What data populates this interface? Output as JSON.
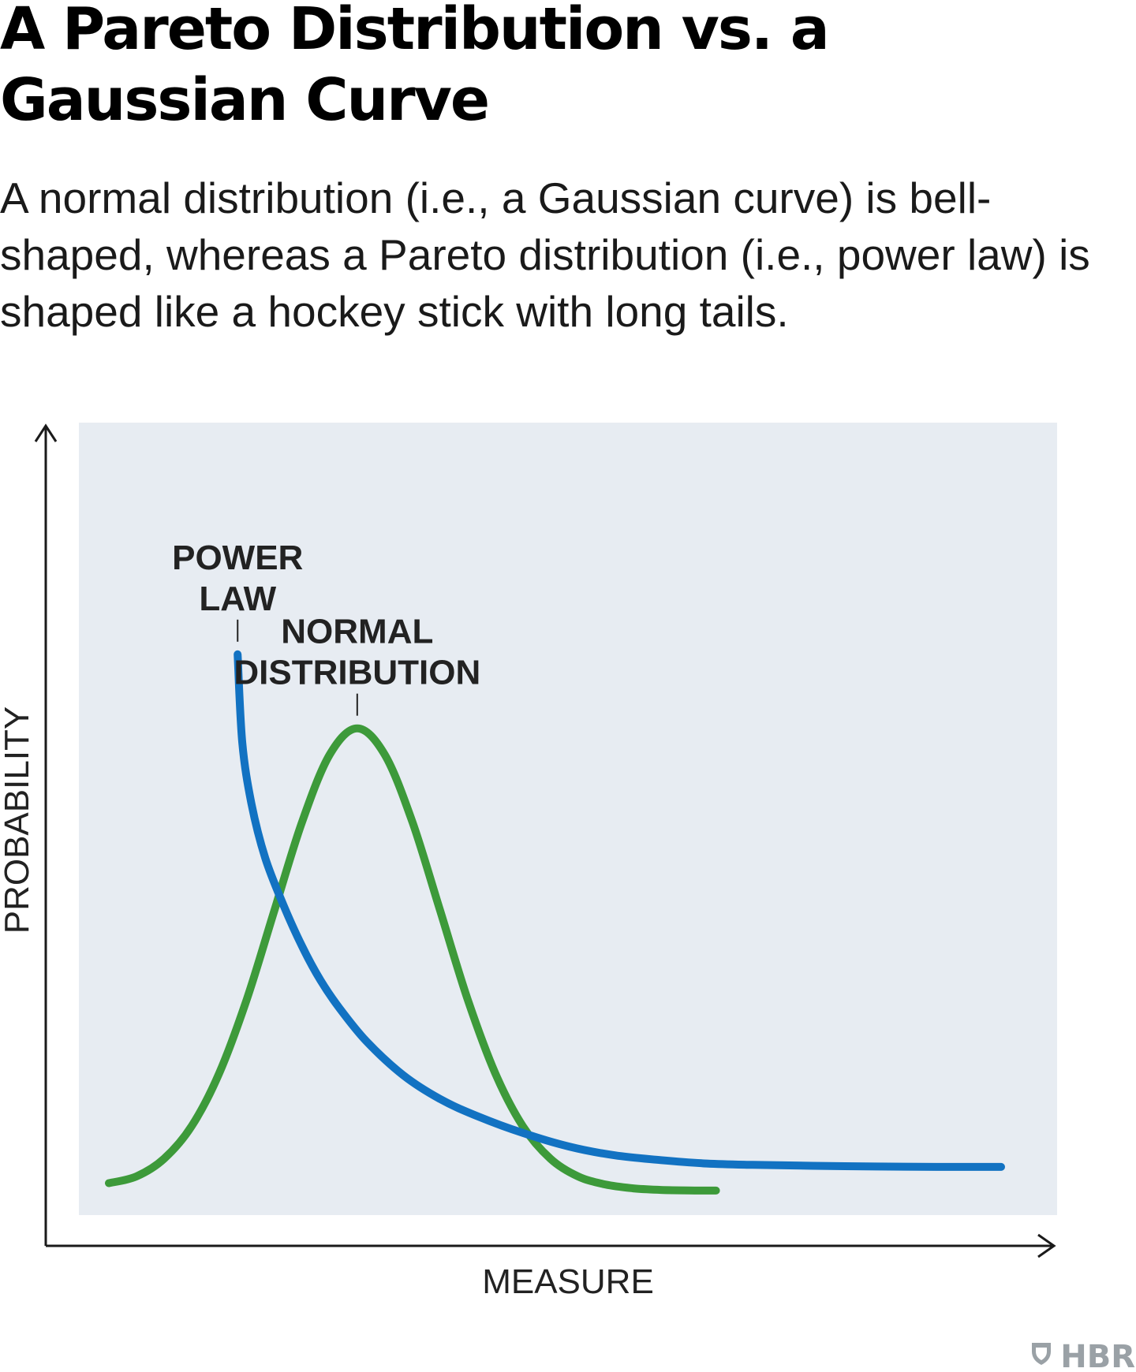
{
  "header": {
    "title": "A Pareto Distribution vs. a Gaussian Curve",
    "subtitle": "A normal distribution (i.e., a Gaussian curve) is bell-shaped, whereas a Pareto distribution (i.e., power law) is shaped like a hockey stick with long tails."
  },
  "chart_data": {
    "type": "line",
    "title": "A Pareto Distribution vs. a Gaussian Curve",
    "xlabel": "MEASURE",
    "ylabel": "PROBABILITY",
    "xlim": [
      0,
      100
    ],
    "ylim": [
      0,
      100
    ],
    "grid": false,
    "legend": "none",
    "series": [
      {
        "name": "POWER LAW",
        "label_lines": [
          "POWER",
          "LAW"
        ],
        "color": "#1272c2",
        "x": [
          14,
          14.5,
          15.5,
          17,
          19,
          21,
          23,
          25,
          28,
          32,
          36,
          40,
          45,
          50,
          55,
          60,
          65,
          70,
          80,
          90,
          97
        ],
        "y": [
          79,
          66,
          57,
          49,
          42,
          36,
          31,
          27,
          22,
          17,
          13.5,
          11,
          8.5,
          6.5,
          5.2,
          4.5,
          4,
          3.8,
          3.6,
          3.5,
          3.5
        ]
      },
      {
        "name": "NORMAL DISTRIBUTION",
        "label_lines": [
          "NORMAL",
          "DISTRIBUTION"
        ],
        "color": "#3d9a3a",
        "x": [
          0,
          3,
          6,
          9,
          12,
          15,
          18,
          21,
          24,
          27,
          30,
          33,
          36,
          39,
          42,
          45,
          48,
          51,
          54,
          57,
          60,
          63,
          66
        ],
        "y": [
          1.1,
          2.1,
          4.7,
          9.5,
          17.3,
          28.2,
          41.3,
          54.3,
          64.2,
          68.1,
          64.2,
          54.3,
          41.3,
          28.2,
          17.3,
          9.5,
          4.7,
          2.1,
          0.9,
          0.34,
          0.11,
          0.03,
          0.01
        ]
      }
    ]
  },
  "brand": {
    "name": "HBR",
    "icon": "hbr-shield-icon",
    "color": "#9aa1a6"
  },
  "colors": {
    "plot_background": "#e7ecf2",
    "axis": "#1a1a1a"
  }
}
